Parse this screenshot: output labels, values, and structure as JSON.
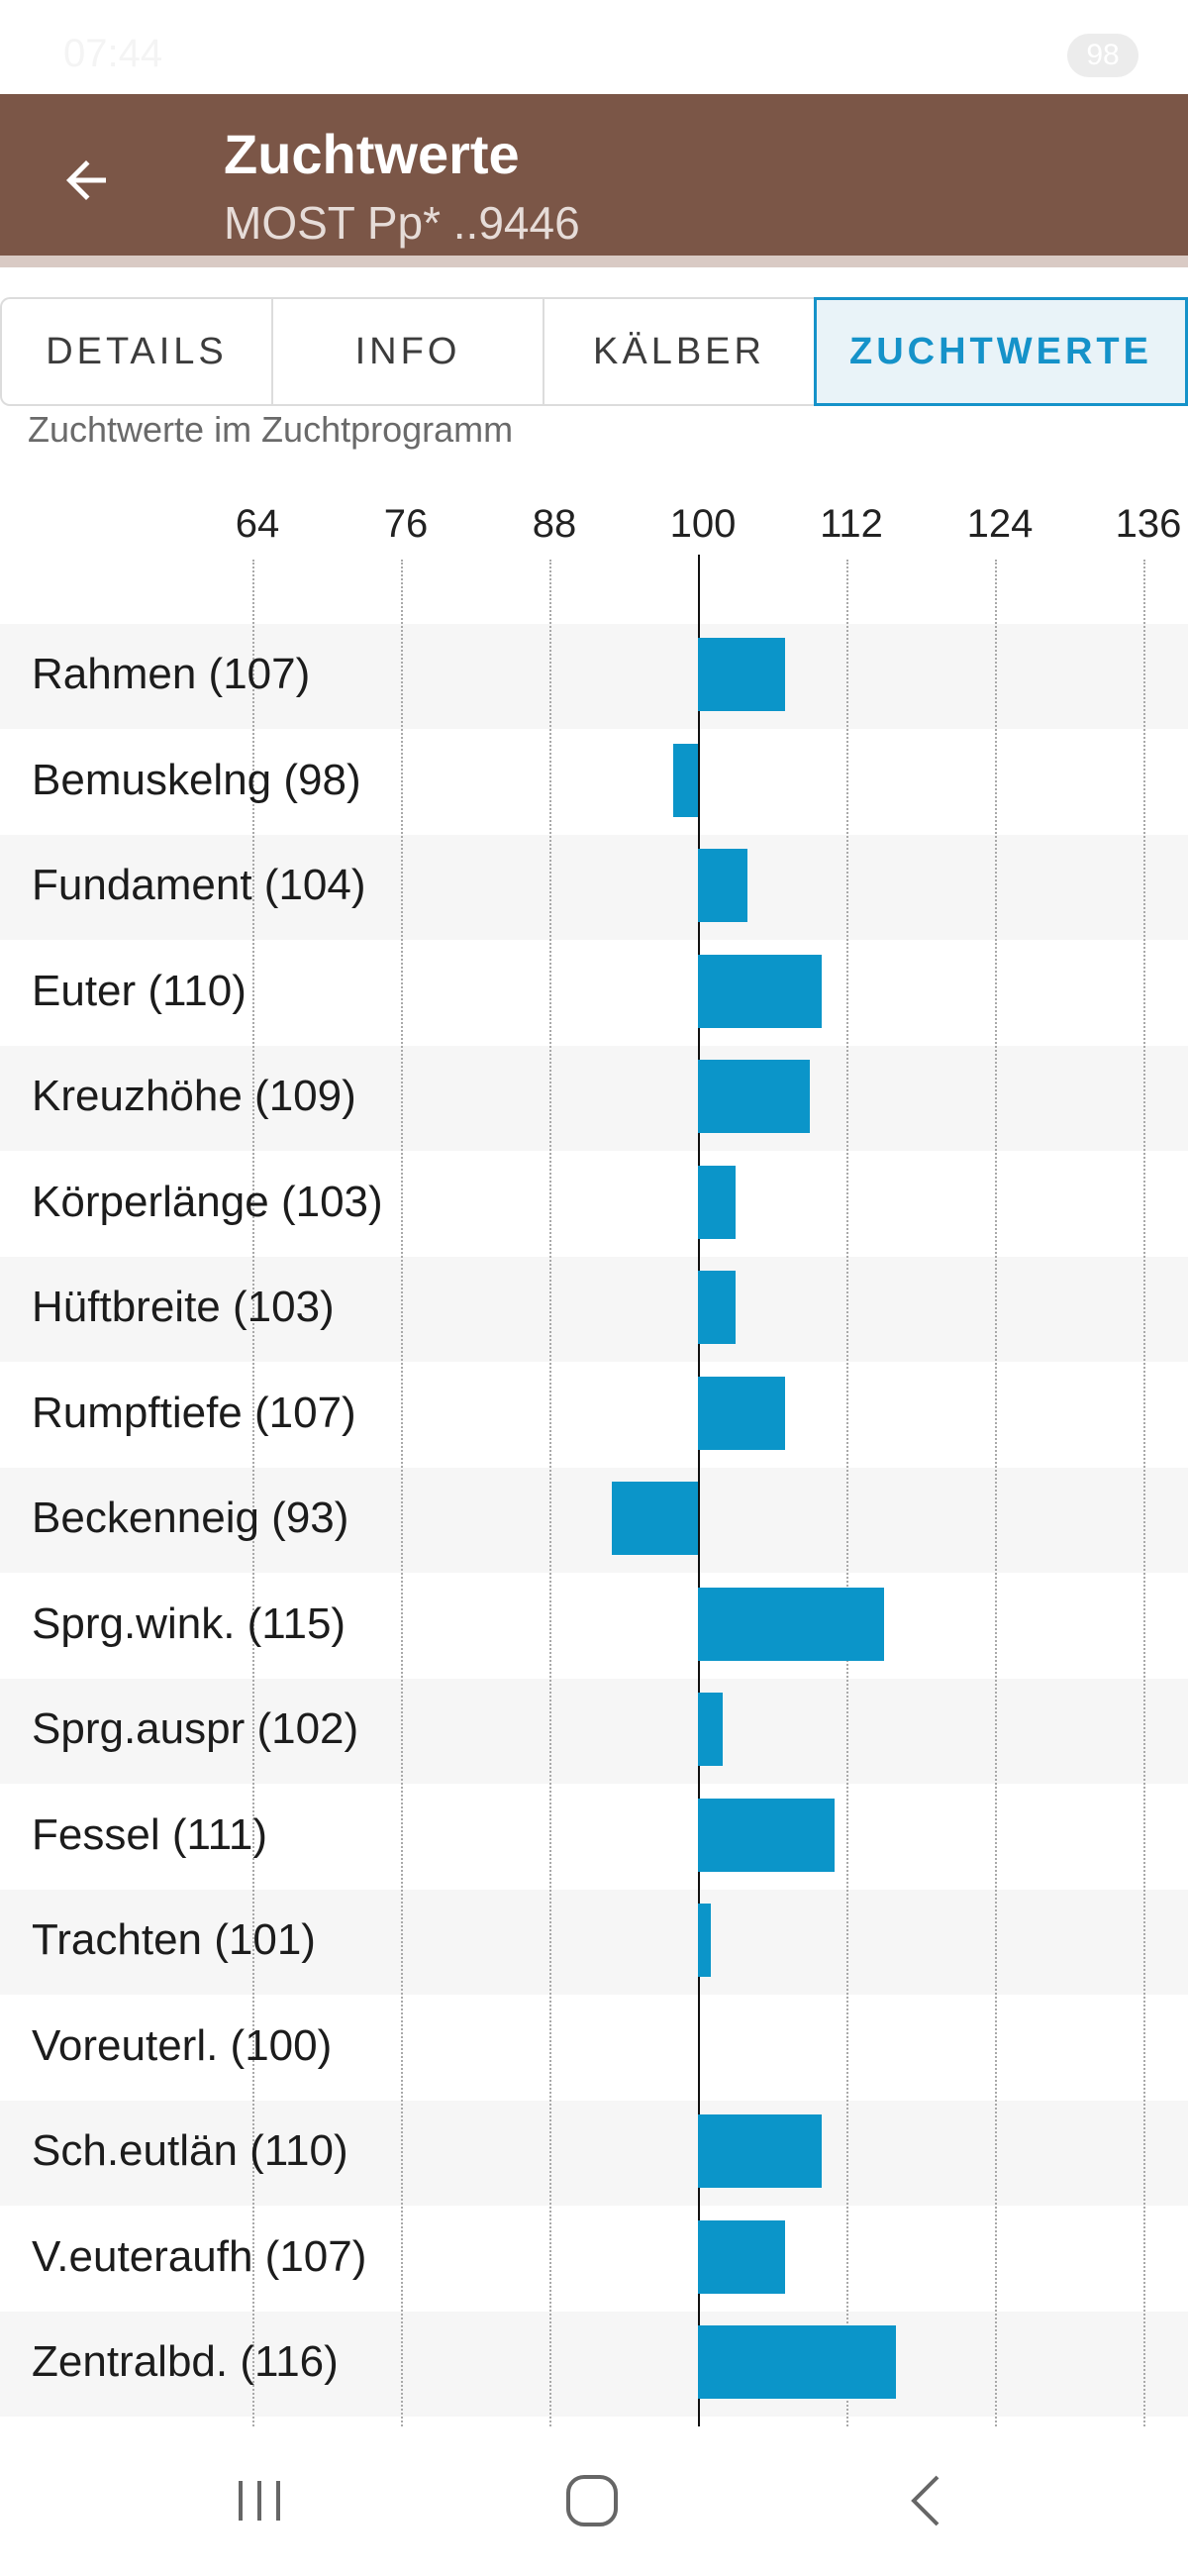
{
  "status": {
    "time": "07:44",
    "battery": "98"
  },
  "header": {
    "title": "Zuchtwerte",
    "subtitle": "MOST Pp* ..9446"
  },
  "tabs": [
    {
      "label": "DETAILS",
      "active": false
    },
    {
      "label": "INFO",
      "active": false
    },
    {
      "label": "KÄLBER",
      "active": false
    },
    {
      "label": "ZUCHTWERTE",
      "active": true
    }
  ],
  "chart_heading": "Zuchtwerte im Zuchtprogramm",
  "colors": {
    "bar": "#0b95c9",
    "app_bar": "#7b5647",
    "tab_active": "#1592c9"
  },
  "icons": {
    "back": "arrow-left-icon",
    "recent": "recent-apps-icon",
    "home": "home-icon",
    "nav_back": "chevron-left-icon"
  },
  "chart_data": {
    "type": "bar",
    "orientation": "horizontal",
    "baseline": 100,
    "x_ticks": [
      "64",
      "76",
      "88",
      "100",
      "112",
      "124",
      "136"
    ],
    "xlim": [
      64,
      136
    ],
    "grid": true,
    "categories": [
      "Rahmen (107)",
      "Bemuskelng (98)",
      "Fundament (104)",
      "Euter (110)",
      "Kreuzhöhe (109)",
      "Körperlänge (103)",
      "Hüftbreite (103)",
      "Rumpftiefe (107)",
      "Beckenneig (93)",
      "Sprg.wink. (115)",
      "Sprg.auspr (102)",
      "Fessel (111)",
      "Trachten (101)",
      "Voreuterl. (100)",
      "Sch.eutlän (110)",
      "V.euteraufh (107)",
      "Zentralbd. (116)"
    ],
    "values": [
      107,
      98,
      104,
      110,
      109,
      103,
      103,
      107,
      93,
      115,
      102,
      111,
      101,
      100,
      110,
      107,
      116
    ]
  }
}
